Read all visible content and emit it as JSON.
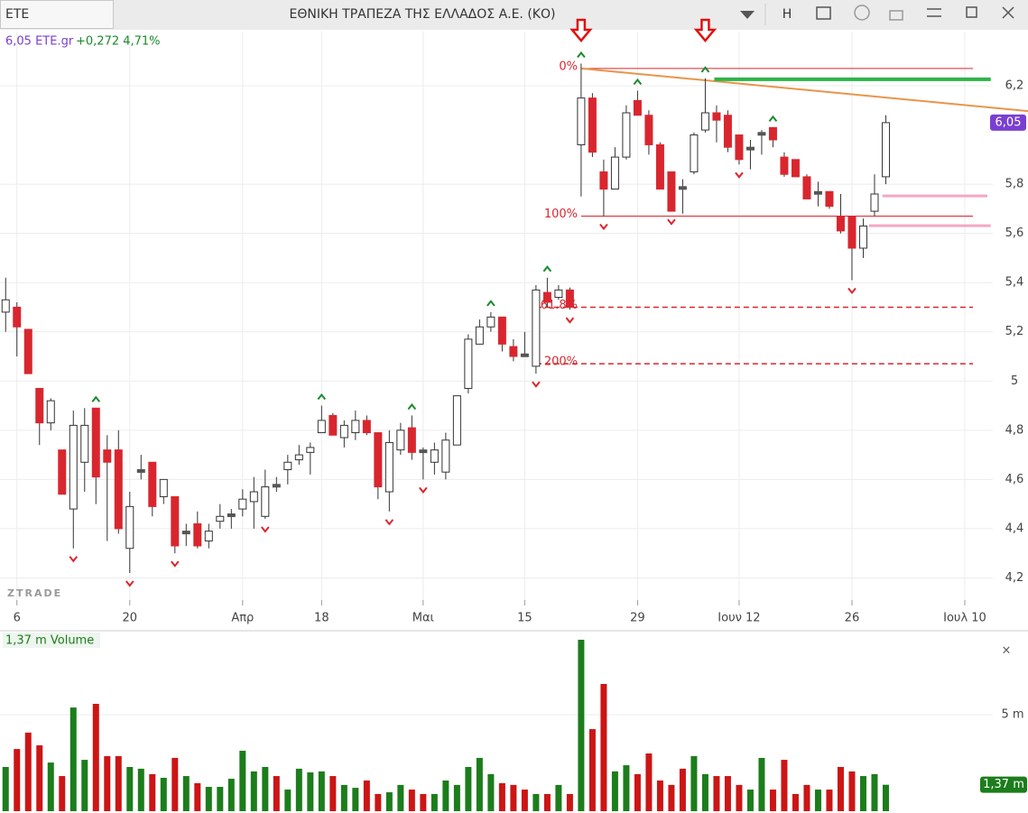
{
  "window": {
    "tab": "ETE",
    "title": "ΕΘΝΙΚΗ ΤΡΑΠΕΖΑ ΤΗΣ ΕΛΛΑΔΟΣ Α.Ε. (ΚΟ)",
    "h_button": "H"
  },
  "chart_data": [
    {
      "type": "candlestick",
      "header": {
        "last": "6,05 ETE.gr",
        "change": "+0,272 4,71%"
      },
      "watermark": "ZTRADE",
      "candles": [
        [
          5.28,
          5.42,
          5.2,
          5.33
        ],
        [
          5.3,
          5.32,
          5.1,
          5.22
        ],
        [
          5.21,
          5.21,
          5.03,
          5.03
        ],
        [
          4.97,
          4.97,
          4.74,
          4.83
        ],
        [
          4.83,
          4.93,
          4.8,
          4.92
        ],
        [
          4.72,
          4.72,
          4.54,
          4.54
        ],
        [
          4.48,
          4.88,
          4.32,
          4.82
        ],
        [
          4.67,
          4.89,
          4.55,
          4.82
        ],
        [
          4.89,
          4.89,
          4.5,
          4.61
        ],
        [
          4.72,
          4.78,
          4.35,
          4.67
        ],
        [
          4.72,
          4.8,
          4.38,
          4.4
        ],
        [
          4.32,
          4.55,
          4.22,
          4.49
        ],
        [
          4.63,
          4.7,
          4.6,
          4.64
        ],
        [
          4.67,
          4.67,
          4.45,
          4.49
        ],
        [
          4.53,
          4.6,
          4.5,
          4.6
        ],
        [
          4.53,
          4.53,
          4.3,
          4.33
        ],
        [
          4.38,
          4.42,
          4.33,
          4.39
        ],
        [
          4.42,
          4.47,
          4.32,
          4.33
        ],
        [
          4.35,
          4.42,
          4.32,
          4.39
        ],
        [
          4.43,
          4.5,
          4.4,
          4.45
        ],
        [
          4.45,
          4.48,
          4.4,
          4.46
        ],
        [
          4.48,
          4.56,
          4.45,
          4.52
        ],
        [
          4.51,
          4.61,
          4.4,
          4.55
        ],
        [
          4.45,
          4.64,
          4.44,
          4.57
        ],
        [
          4.58,
          4.61,
          4.55,
          4.57
        ],
        [
          4.64,
          4.7,
          4.58,
          4.67
        ],
        [
          4.68,
          4.74,
          4.66,
          4.7
        ],
        [
          4.71,
          4.75,
          4.62,
          4.73
        ],
        [
          4.79,
          4.9,
          4.79,
          4.84
        ],
        [
          4.86,
          4.87,
          4.78,
          4.78
        ],
        [
          4.77,
          4.84,
          4.73,
          4.82
        ],
        [
          4.79,
          4.88,
          4.76,
          4.84
        ],
        [
          4.84,
          4.86,
          4.78,
          4.79
        ],
        [
          4.79,
          4.79,
          4.52,
          4.57
        ],
        [
          4.55,
          4.8,
          4.47,
          4.75
        ],
        [
          4.72,
          4.83,
          4.7,
          4.8
        ],
        [
          4.81,
          4.86,
          4.68,
          4.71
        ],
        [
          4.72,
          4.73,
          4.6,
          4.71
        ],
        [
          4.67,
          4.75,
          4.62,
          4.72
        ],
        [
          4.63,
          4.79,
          4.6,
          4.76
        ],
        [
          4.74,
          4.94,
          4.74,
          4.94
        ],
        [
          4.97,
          5.19,
          4.95,
          5.17
        ],
        [
          5.15,
          5.25,
          5.15,
          5.22
        ],
        [
          5.22,
          5.28,
          5.2,
          5.26
        ],
        [
          5.26,
          5.26,
          5.12,
          5.15
        ],
        [
          5.14,
          5.17,
          5.08,
          5.1
        ],
        [
          5.11,
          5.2,
          5.1,
          5.1
        ],
        [
          5.06,
          5.39,
          5.03,
          5.37
        ],
        [
          5.36,
          5.42,
          5.3,
          5.32
        ],
        [
          5.34,
          5.39,
          5.33,
          5.37
        ],
        [
          5.37,
          5.38,
          5.29,
          5.3
        ],
        [
          5.96,
          6.29,
          5.75,
          6.15
        ],
        [
          6.15,
          6.17,
          5.91,
          5.93
        ],
        [
          5.85,
          5.9,
          5.67,
          5.78
        ],
        [
          5.78,
          5.95,
          5.78,
          5.91
        ],
        [
          5.91,
          6.12,
          5.9,
          6.09
        ],
        [
          6.14,
          6.18,
          6.08,
          6.08
        ],
        [
          6.08,
          6.1,
          5.92,
          5.96
        ],
        [
          5.96,
          5.97,
          5.78,
          5.78
        ],
        [
          5.85,
          5.85,
          5.69,
          5.69
        ],
        [
          5.79,
          5.82,
          5.68,
          5.78
        ],
        [
          5.85,
          6.01,
          5.84,
          6.0
        ],
        [
          6.02,
          6.23,
          6.01,
          6.09
        ],
        [
          6.09,
          6.12,
          5.97,
          6.06
        ],
        [
          6.08,
          6.1,
          5.93,
          5.95
        ],
        [
          6.0,
          6.0,
          5.88,
          5.9
        ],
        [
          5.95,
          5.98,
          5.86,
          5.95
        ],
        [
          6.0,
          6.02,
          5.92,
          6.01
        ],
        [
          6.03,
          6.03,
          5.95,
          5.98
        ],
        [
          5.91,
          5.93,
          5.83,
          5.84
        ],
        [
          5.9,
          5.9,
          5.83,
          5.83
        ],
        [
          5.83,
          5.84,
          5.74,
          5.74
        ],
        [
          5.77,
          5.81,
          5.71,
          5.77
        ],
        [
          5.77,
          5.77,
          5.7,
          5.71
        ],
        [
          5.67,
          5.76,
          5.6,
          5.61
        ],
        [
          5.67,
          5.67,
          5.41,
          5.54
        ],
        [
          5.54,
          5.66,
          5.5,
          5.63
        ],
        [
          5.69,
          5.84,
          5.67,
          5.76
        ],
        [
          5.83,
          6.08,
          5.8,
          6.05
        ]
      ],
      "up_color": "#ffffff",
      "down_color": "#d9262e",
      "doji_color": "#555555",
      "xlim": [
        -0.5,
        90.6
      ],
      "xticks": [
        {
          "value": 1,
          "label": "6"
        },
        {
          "value": 11,
          "label": "20"
        },
        {
          "value": 21,
          "label": "Απρ"
        },
        {
          "value": 28,
          "label": "18"
        },
        {
          "value": 37,
          "label": "Μαι"
        },
        {
          "value": 46,
          "label": "15"
        },
        {
          "value": 56,
          "label": "29"
        },
        {
          "value": 65,
          "label": "Ιουν 12"
        },
        {
          "value": 75,
          "label": "26"
        },
        {
          "value": 85,
          "label": "Ιουλ 10"
        }
      ],
      "ylim": [
        4.11,
        6.42
      ],
      "yticks": [
        {
          "value": 4.2,
          "label": "4,2"
        },
        {
          "value": 4.4,
          "label": "4,4"
        },
        {
          "value": 4.6,
          "label": "4,6"
        },
        {
          "value": 4.8,
          "label": "4,8"
        },
        5,
        {
          "value": 5.2,
          "label": "5,2"
        },
        {
          "value": 5.4,
          "label": "5,4"
        },
        {
          "value": 5.6,
          "label": "5,6"
        },
        {
          "value": 5.8,
          "label": "5,8"
        },
        {
          "value": 6.2,
          "label": "6,2"
        }
      ],
      "grid": true,
      "last_price": {
        "value": 6.05,
        "label": "6,05"
      },
      "fib_levels": [
        {
          "label": "0%",
          "value": 6.27,
          "dashed": false
        },
        {
          "label": "100%",
          "value": 5.67,
          "dashed": false
        },
        {
          "label": "161.8%",
          "value": 5.3,
          "dashed": true
        },
        {
          "label": "200%",
          "value": 5.07,
          "dashed": true
        }
      ],
      "trend_lines": [
        {
          "x": [
            51,
            90.6
          ],
          "y": [
            6.27,
            6.097
          ],
          "color": "#e8954a",
          "width": 2
        },
        {
          "x": [
            62.8,
            87.3
          ],
          "y": [
            6.226,
            6.226
          ],
          "color": "#2db34a",
          "width": 4
        },
        {
          "x": [
            77.7,
            87
          ],
          "y": [
            5.752,
            5.752
          ],
          "color": "#f4a7c0",
          "width": 3
        },
        {
          "x": [
            76.5,
            87.3
          ],
          "y": [
            5.631,
            5.631
          ],
          "color": "#f4a7c0",
          "width": 3
        }
      ],
      "up_fractals": [
        8,
        28,
        36,
        43,
        48,
        51,
        56,
        62,
        68
      ],
      "down_fractals": [
        6,
        11,
        15,
        23,
        34,
        37,
        47,
        50,
        53,
        59,
        65,
        75
      ],
      "arrows": [
        51,
        62
      ]
    },
    {
      "type": "bar",
      "title": "1,37 m Volume",
      "close_button": "×",
      "values": [
        2.29,
        3.22,
        4.07,
        3.41,
        2.52,
        1.82,
        5.37,
        2.66,
        5.56,
        2.85,
        2.85,
        2.29,
        2.2,
        1.92,
        1.73,
        2.76,
        1.82,
        1.45,
        1.26,
        1.26,
        1.68,
        3.13,
        2.06,
        2.29,
        1.82,
        1.12,
        2.2,
        2.01,
        2.06,
        1.82,
        1.36,
        1.21,
        1.59,
        0.89,
        0.98,
        1.36,
        1.12,
        0.89,
        0.89,
        1.59,
        1.36,
        2.29,
        2.76,
        1.92,
        1.45,
        1.36,
        1.12,
        0.89,
        0.89,
        1.36,
        0.89,
        8.88,
        4.25,
        6.59,
        2.06,
        2.38,
        1.92,
        2.99,
        1.59,
        1.36,
        2.2,
        2.85,
        1.92,
        1.82,
        1.82,
        1.36,
        1.12,
        2.76,
        1.12,
        2.66,
        0.89,
        1.36,
        1.12,
        1.12,
        2.29,
        2.06,
        1.82,
        1.92,
        1.37
      ],
      "up_color": "#1b7d1b",
      "down_color": "#cc1515",
      "ylim": [
        0,
        9.3
      ],
      "yticks": [
        {
          "value": 5,
          "label": "5 m"
        }
      ],
      "last_value": {
        "value": 1.37,
        "label": "1,37 m"
      }
    }
  ]
}
